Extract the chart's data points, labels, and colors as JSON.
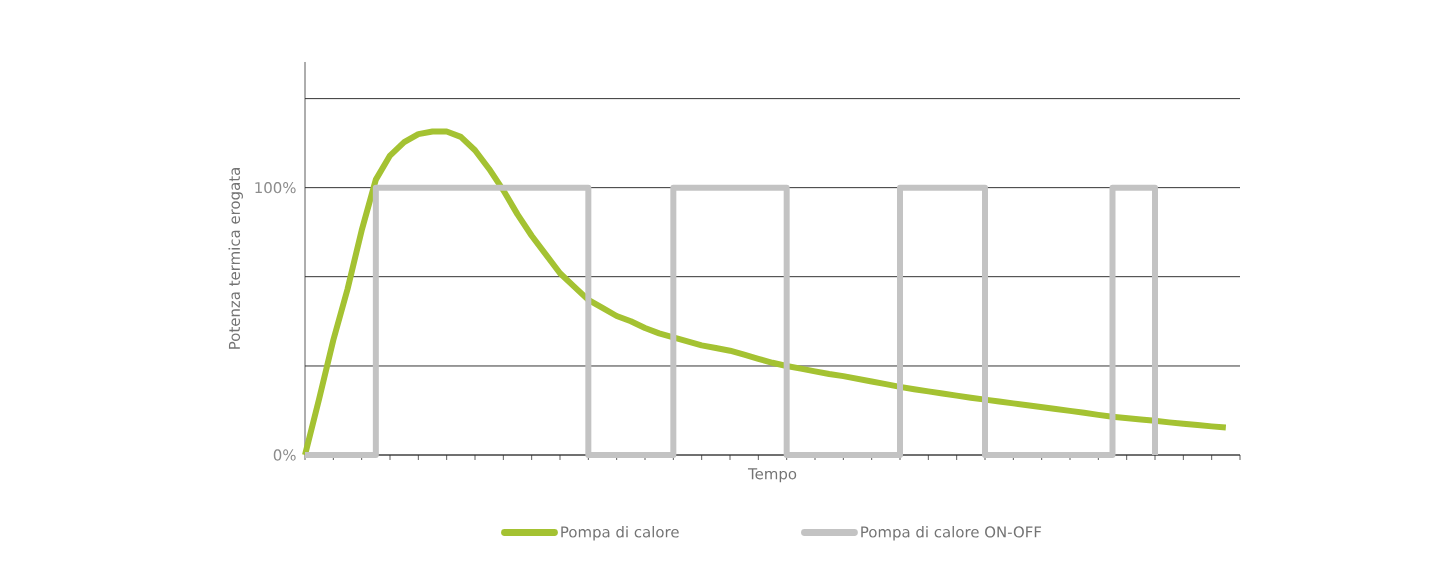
{
  "chart_data": {
    "type": "line",
    "xlabel": "Tempo",
    "ylabel": "Potenza termica erogata",
    "categories": [
      null,
      null,
      null,
      null,
      null,
      null,
      null,
      null,
      null,
      null,
      null,
      null,
      null,
      null,
      null,
      null,
      null,
      null,
      null,
      null,
      null,
      null,
      null,
      null,
      null,
      null,
      null,
      null,
      null,
      null,
      null,
      null,
      null,
      null,
      null,
      null,
      null,
      null,
      null,
      null,
      null,
      null,
      null,
      null,
      null,
      null,
      null,
      null,
      null,
      null,
      null,
      null,
      null,
      null,
      null,
      null,
      null,
      null,
      null,
      null,
      null,
      null,
      null,
      null,
      null,
      null,
      null
    ],
    "ylim": [
      0,
      147
    ],
    "yticks": [
      {
        "value": 0,
        "label": "0%"
      },
      {
        "value": 33.3,
        "label": null
      },
      {
        "value": 66.7,
        "label": null
      },
      {
        "value": 100,
        "label": "100%"
      },
      {
        "value": 133.3,
        "label": null
      }
    ],
    "grid": "y",
    "legend": "bottom",
    "marker": "none",
    "line_style": "solid",
    "series": [
      {
        "name": "Pompa di calore",
        "color": "#a4c232",
        "values": [
          0,
          21,
          43,
          62,
          84,
          103,
          112,
          117,
          120,
          121,
          121,
          119,
          114,
          107,
          99,
          90,
          82,
          75,
          68,
          63,
          58,
          55,
          52,
          50,
          47.5,
          45.5,
          44,
          42.5,
          41,
          40,
          39,
          37.5,
          36,
          34.5,
          33.3,
          32.3,
          31.3,
          30.3,
          29.5,
          28.5,
          27.5,
          26.5,
          25.5,
          24.6,
          23.8,
          23,
          22.2,
          21.4,
          20.7,
          20,
          19.3,
          18.6,
          17.9,
          17.2,
          16.5,
          15.8,
          15,
          14.3,
          13.8,
          13.3,
          12.8,
          12.2,
          11.7,
          11.2,
          10.7,
          10.3,
          null
        ]
      },
      {
        "name": "Pompa di calore ON-OFF",
        "color": "#c3c3c3",
        "type": "step",
        "values": [
          0,
          0,
          0,
          0,
          0,
          100,
          100,
          100,
          100,
          100,
          100,
          100,
          100,
          100,
          100,
          100,
          100,
          100,
          100,
          100,
          0,
          0,
          0,
          0,
          0,
          0,
          100,
          100,
          100,
          100,
          100,
          100,
          100,
          100,
          0,
          0,
          0,
          0,
          0,
          0,
          0,
          0,
          100,
          100,
          100,
          100,
          100,
          100,
          0,
          0,
          0,
          0,
          0,
          0,
          0,
          0,
          0,
          100,
          100,
          100,
          0,
          null,
          null,
          null,
          null,
          null,
          null
        ]
      }
    ]
  }
}
